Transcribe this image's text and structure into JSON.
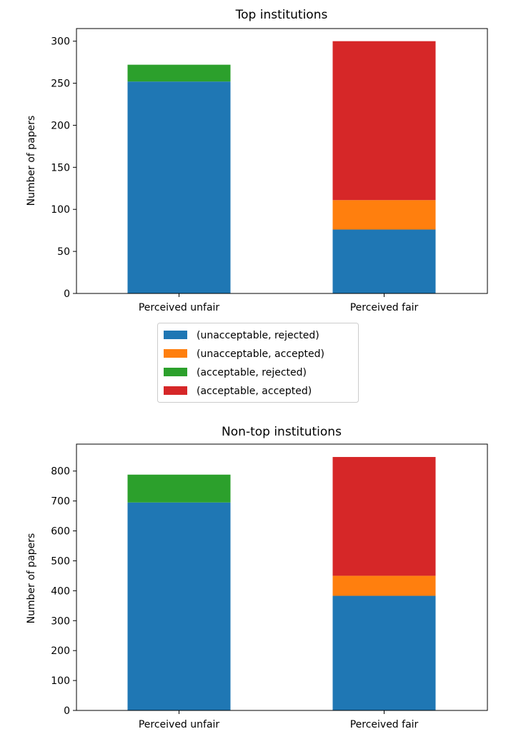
{
  "chart_data": [
    {
      "type": "bar",
      "stacked": true,
      "title": "Top institutions",
      "xlabel": "",
      "ylabel": "Number of papers",
      "categories": [
        "Perceived unfair",
        "Perceived fair"
      ],
      "ylim": [
        0,
        315
      ],
      "yticks": [
        0,
        50,
        100,
        150,
        200,
        250,
        300
      ],
      "series": [
        {
          "name": "(unacceptable, rejected)",
          "color": "#1f77b4",
          "values": [
            252,
            76
          ]
        },
        {
          "name": "(unacceptable, accepted)",
          "color": "#ff7f0e",
          "values": [
            0,
            35
          ]
        },
        {
          "name": "(acceptable, rejected)",
          "color": "#2ca02c",
          "values": [
            20,
            0
          ]
        },
        {
          "name": "(acceptable, accepted)",
          "color": "#d62728",
          "values": [
            0,
            189
          ]
        }
      ],
      "legend": "below"
    },
    {
      "type": "bar",
      "stacked": true,
      "title": "Non-top institutions",
      "xlabel": "",
      "ylabel": "Number of papers",
      "categories": [
        "Perceived unfair",
        "Perceived fair"
      ],
      "ylim": [
        0,
        890
      ],
      "yticks": [
        0,
        100,
        200,
        300,
        400,
        500,
        600,
        700,
        800
      ],
      "series": [
        {
          "name": "(unacceptable, rejected)",
          "color": "#1f77b4",
          "values": [
            695,
            383
          ]
        },
        {
          "name": "(unacceptable, accepted)",
          "color": "#ff7f0e",
          "values": [
            0,
            67
          ]
        },
        {
          "name": "(acceptable, rejected)",
          "color": "#2ca02c",
          "values": [
            93,
            0
          ]
        },
        {
          "name": "(acceptable, accepted)",
          "color": "#d62728",
          "values": [
            0,
            397
          ]
        }
      ]
    }
  ]
}
